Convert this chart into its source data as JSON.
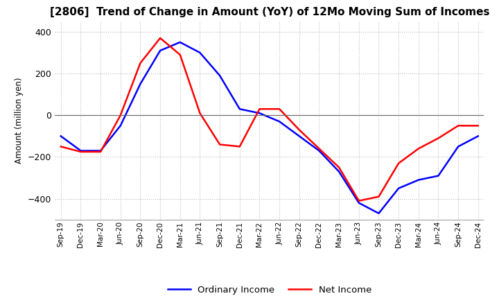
{
  "title": "[2806]  Trend of Change in Amount (YoY) of 12Mo Moving Sum of Incomes",
  "ylabel": "Amount (million yen)",
  "x_labels": [
    "Sep-19",
    "Dec-19",
    "Mar-20",
    "Jun-20",
    "Sep-20",
    "Dec-20",
    "Mar-21",
    "Jun-21",
    "Sep-21",
    "Dec-21",
    "Mar-22",
    "Jun-22",
    "Sep-22",
    "Dec-22",
    "Mar-23",
    "Jun-23",
    "Sep-23",
    "Dec-23",
    "Mar-24",
    "Jun-24",
    "Sep-24",
    "Dec-24"
  ],
  "ordinary_income": [
    -100,
    -170,
    -170,
    -50,
    150,
    310,
    350,
    300,
    190,
    30,
    10,
    -30,
    -100,
    -170,
    -270,
    -420,
    -470,
    -350,
    -310,
    -290,
    -150,
    -100
  ],
  "net_income": [
    -150,
    -175,
    -175,
    0,
    250,
    370,
    290,
    10,
    -140,
    -150,
    30,
    30,
    -70,
    -160,
    -250,
    -410,
    -390,
    -230,
    -160,
    -110,
    -50,
    -50
  ],
  "ordinary_color": "#0000ff",
  "net_color": "#ff0000",
  "ylim": [
    -500,
    450
  ],
  "yticks": [
    -400,
    -200,
    0,
    200,
    400
  ],
  "background_color": "#ffffff",
  "grid_color": "#bbbbbb",
  "title_fontsize": 11,
  "title_fontweight": "bold"
}
